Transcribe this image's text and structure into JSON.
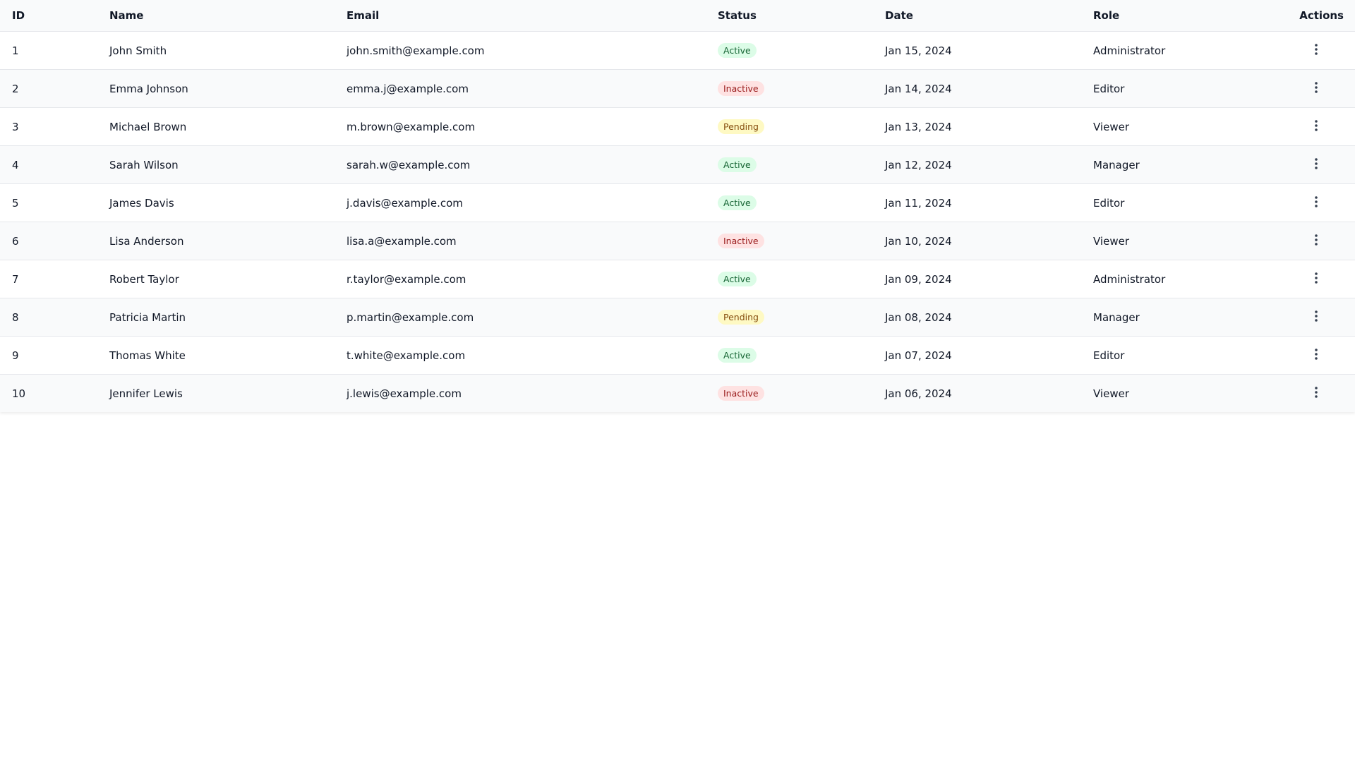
{
  "header": {
    "columns": [
      "ID",
      "Name",
      "Email",
      "Status",
      "Date",
      "Role",
      "Actions"
    ]
  },
  "table": {
    "rows": [
      [
        1,
        "John Smith",
        "john.smith@example.com",
        "Active",
        "Jan 15, 2024",
        "Administrator"
      ],
      [
        2,
        "Emma Johnson",
        "emma.j@example.com",
        "Inactive",
        "Jan 14, 2024",
        "Editor"
      ],
      [
        3,
        "Michael Brown",
        "m.brown@example.com",
        "Pending",
        "Jan 13, 2024",
        "Viewer"
      ],
      [
        4,
        "Sarah Wilson",
        "sarah.w@example.com",
        "Active",
        "Jan 12, 2024",
        "Manager"
      ],
      [
        5,
        "James Davis",
        "j.davis@example.com",
        "Active",
        "Jan 11, 2024",
        "Editor"
      ],
      [
        6,
        "Lisa Anderson",
        "lisa.a@example.com",
        "Inactive",
        "Jan 10, 2024",
        "Viewer"
      ],
      [
        7,
        "Robert Taylor",
        "r.taylor@example.com",
        "Active",
        "Jan 09, 2024",
        "Administrator"
      ],
      [
        8,
        "Patricia Martin",
        "p.martin@example.com",
        "Pending",
        "Jan 08, 2024",
        "Manager"
      ],
      [
        9,
        "Thomas White",
        "t.white@example.com",
        "Active",
        "Jan 07, 2024",
        "Editor"
      ],
      [
        10,
        "Jennifer Lewis",
        "j.lewis@example.com",
        "Inactive",
        "Jan 06, 2024",
        "Viewer"
      ]
    ]
  },
  "status_colors": {
    "Active": {
      "bg": "#dcfce7",
      "fg": "#166534"
    },
    "Inactive": {
      "bg": "#fee2e2",
      "fg": "#991b1b"
    },
    "Pending": {
      "bg": "#fef9c3",
      "fg": "#854d0e"
    }
  }
}
